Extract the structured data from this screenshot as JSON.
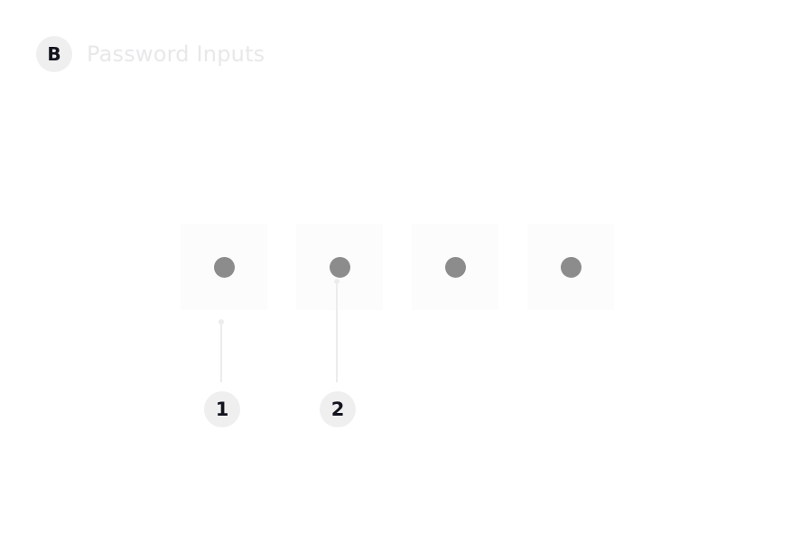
{
  "header": {
    "badge": "B",
    "title": "Password Inputs"
  },
  "pin_inputs": [
    {
      "filled": true
    },
    {
      "filled": true
    },
    {
      "filled": true
    },
    {
      "filled": true
    }
  ],
  "annotations": [
    {
      "label": "1",
      "target": "pin-box-1"
    },
    {
      "label": "2",
      "target": "pin-box-2"
    }
  ],
  "colors": {
    "badge_background": "#efefef",
    "badge_text": "#14141f",
    "title_text": "#e8e8ea",
    "box_background": "#fcfcfc",
    "dot": "#8c8c8c",
    "connector": "#ececec"
  }
}
